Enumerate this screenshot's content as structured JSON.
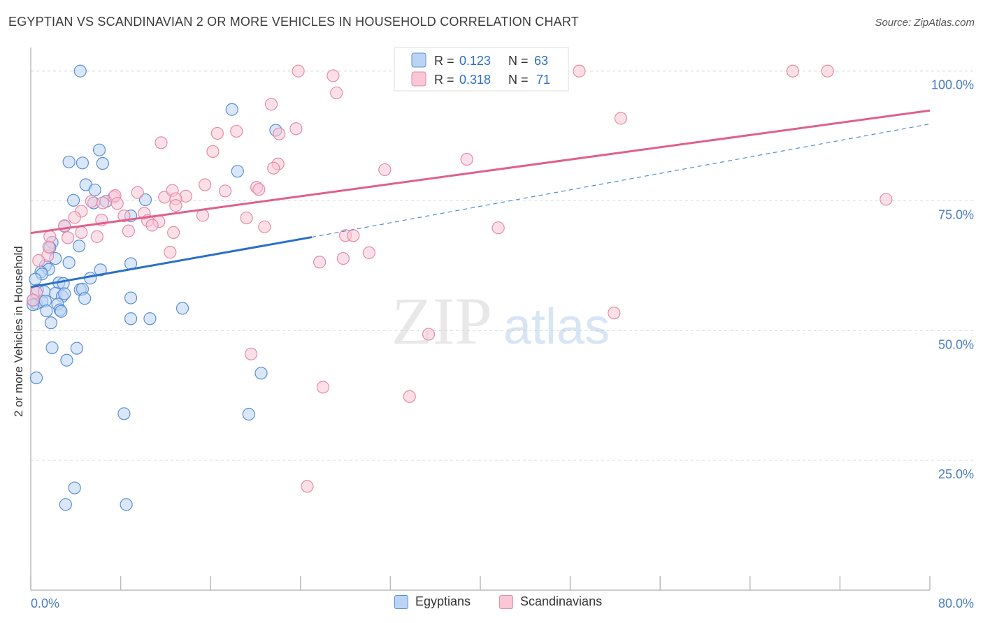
{
  "title": "EGYPTIAN VS SCANDINAVIAN 2 OR MORE VEHICLES IN HOUSEHOLD CORRELATION CHART",
  "source": "Source: ZipAtlas.com",
  "watermark": {
    "zip": "ZIP",
    "atlas": "atlas"
  },
  "colors": {
    "egyptians_fill": "#bcd4f4",
    "egyptians_stroke": "#5a8fd6",
    "egyptians_line": "#2a6fc9",
    "scandinavians_fill": "#f9c7d6",
    "scandinavians_stroke": "#e68aa8",
    "scandinavians_line": "#e0608c",
    "tick_label": "#4a7cc4",
    "grid": "#dddddd"
  },
  "legend_top": [
    {
      "r_label": "R =",
      "r_value": "0.123",
      "n_label": "N =",
      "n_value": "63"
    },
    {
      "r_label": "R =",
      "r_value": "0.318",
      "n_label": "N =",
      "n_value": "71"
    }
  ],
  "legend_bottom": [
    "Egyptians",
    "Scandinavians"
  ],
  "chart_data": {
    "type": "scatter",
    "title": "EGYPTIAN VS SCANDINAVIAN 2 OR MORE VEHICLES IN HOUSEHOLD CORRELATION CHART",
    "xlabel": "",
    "ylabel": "2 or more Vehicles in Household",
    "xlim": [
      0,
      80
    ],
    "ylim": [
      0,
      104
    ],
    "x_tick_labels": [
      "0.0%",
      "80.0%"
    ],
    "y_ticks": [
      25,
      50,
      75,
      100
    ],
    "y_tick_labels": [
      "25.0%",
      "50.0%",
      "75.0%",
      "100.0%"
    ],
    "grid": true,
    "legend_position": "top-center",
    "series": [
      {
        "name": "Egyptians",
        "r": 0.123,
        "n": 63,
        "trend": {
          "x0": 0,
          "y0": 58.4,
          "x1": 25,
          "y1": 68.0,
          "dash_x1": 80,
          "dash_y1": 89.8
        },
        "points": [
          [
            4.4,
            100
          ],
          [
            17.9,
            92.6
          ],
          [
            21.8,
            88.6
          ],
          [
            6.1,
            84.8
          ],
          [
            3.4,
            82.5
          ],
          [
            4.6,
            82.3
          ],
          [
            6.4,
            82.2
          ],
          [
            18.4,
            80.7
          ],
          [
            4.9,
            78.1
          ],
          [
            5.7,
            77.1
          ],
          [
            3.8,
            75.1
          ],
          [
            5.6,
            74.6
          ],
          [
            6.7,
            74.9
          ],
          [
            10.2,
            75.2
          ],
          [
            8.9,
            72.1
          ],
          [
            3.0,
            70.1
          ],
          [
            1.9,
            67.0
          ],
          [
            4.3,
            66.3
          ],
          [
            1.7,
            66.0
          ],
          [
            2.2,
            63.9
          ],
          [
            1.3,
            62.5
          ],
          [
            3.4,
            63.1
          ],
          [
            1.6,
            61.8
          ],
          [
            0.9,
            61.3
          ],
          [
            6.2,
            61.7
          ],
          [
            1.0,
            60.9
          ],
          [
            5.3,
            60.1
          ],
          [
            0.4,
            59.9
          ],
          [
            8.9,
            62.9
          ],
          [
            2.5,
            59.2
          ],
          [
            2.9,
            59.1
          ],
          [
            4.4,
            57.9
          ],
          [
            4.6,
            58.0
          ],
          [
            0.6,
            57.8
          ],
          [
            1.2,
            57.5
          ],
          [
            2.2,
            57.2
          ],
          [
            2.8,
            56.6
          ],
          [
            3.0,
            57.1
          ],
          [
            4.8,
            56.2
          ],
          [
            0.2,
            55.8
          ],
          [
            0.5,
            55.2
          ],
          [
            1.0,
            55.6
          ],
          [
            1.3,
            55.7
          ],
          [
            2.4,
            55.1
          ],
          [
            0.2,
            55.0
          ],
          [
            2.6,
            54.0
          ],
          [
            2.7,
            53.7
          ],
          [
            1.4,
            53.8
          ],
          [
            8.9,
            56.3
          ],
          [
            13.5,
            54.3
          ],
          [
            8.9,
            52.3
          ],
          [
            10.6,
            52.3
          ],
          [
            1.8,
            51.5
          ],
          [
            1.9,
            46.7
          ],
          [
            4.1,
            46.6
          ],
          [
            3.2,
            44.3
          ],
          [
            20.5,
            41.8
          ],
          [
            0.5,
            40.9
          ],
          [
            8.3,
            34.0
          ],
          [
            19.4,
            33.9
          ],
          [
            3.9,
            19.7
          ],
          [
            3.1,
            16.5
          ],
          [
            8.5,
            16.5
          ]
        ]
      },
      {
        "name": "Scandinavians",
        "r": 0.318,
        "n": 71,
        "trend": {
          "x0": 0,
          "y0": 68.8,
          "x1": 80,
          "y1": 92.4
        },
        "points": [
          [
            23.8,
            100
          ],
          [
            26.9,
            99.1
          ],
          [
            37.5,
            100
          ],
          [
            48.8,
            100
          ],
          [
            67.8,
            100
          ],
          [
            70.9,
            100
          ],
          [
            27.2,
            95.8
          ],
          [
            21.4,
            93.6
          ],
          [
            52.5,
            90.9
          ],
          [
            23.6,
            88.9
          ],
          [
            18.3,
            88.4
          ],
          [
            16.6,
            88.0
          ],
          [
            22.1,
            87.9
          ],
          [
            11.6,
            86.2
          ],
          [
            16.2,
            84.5
          ],
          [
            38.8,
            83.0
          ],
          [
            22.0,
            82.1
          ],
          [
            21.6,
            81.3
          ],
          [
            31.5,
            81.0
          ],
          [
            15.5,
            78.1
          ],
          [
            11.9,
            75.7
          ],
          [
            12.6,
            77.0
          ],
          [
            17.3,
            76.9
          ],
          [
            20.1,
            77.6
          ],
          [
            20.3,
            77.2
          ],
          [
            13.8,
            75.9
          ],
          [
            12.9,
            75.4
          ],
          [
            7.4,
            75.7
          ],
          [
            9.5,
            76.6
          ],
          [
            7.5,
            76.0
          ],
          [
            5.4,
            74.9
          ],
          [
            6.4,
            74.6
          ],
          [
            7.7,
            74.5
          ],
          [
            12.9,
            74.1
          ],
          [
            4.5,
            73.0
          ],
          [
            8.3,
            72.1
          ],
          [
            10.1,
            72.6
          ],
          [
            15.3,
            72.2
          ],
          [
            19.2,
            71.7
          ],
          [
            6.3,
            71.3
          ],
          [
            10.4,
            71.2
          ],
          [
            11.4,
            71.0
          ],
          [
            3.9,
            71.8
          ],
          [
            3.0,
            70.2
          ],
          [
            10.8,
            70.3
          ],
          [
            20.8,
            70.0
          ],
          [
            8.7,
            69.2
          ],
          [
            12.7,
            68.9
          ],
          [
            1.7,
            68.1
          ],
          [
            4.5,
            68.9
          ],
          [
            3.3,
            67.9
          ],
          [
            5.9,
            68.1
          ],
          [
            28.0,
            68.3
          ],
          [
            28.7,
            68.3
          ],
          [
            41.6,
            69.8
          ],
          [
            1.5,
            64.4
          ],
          [
            1.6,
            66.1
          ],
          [
            0.7,
            63.5
          ],
          [
            30.1,
            65.0
          ],
          [
            12.4,
            65.1
          ],
          [
            27.8,
            63.9
          ],
          [
            25.7,
            63.2
          ],
          [
            76.1,
            75.3
          ],
          [
            35.4,
            49.3
          ],
          [
            51.9,
            53.4
          ],
          [
            19.6,
            45.5
          ],
          [
            26.0,
            39.1
          ],
          [
            33.7,
            37.3
          ],
          [
            24.6,
            20.0
          ],
          [
            0.5,
            57.3
          ],
          [
            0.2,
            55.9
          ]
        ]
      }
    ]
  }
}
